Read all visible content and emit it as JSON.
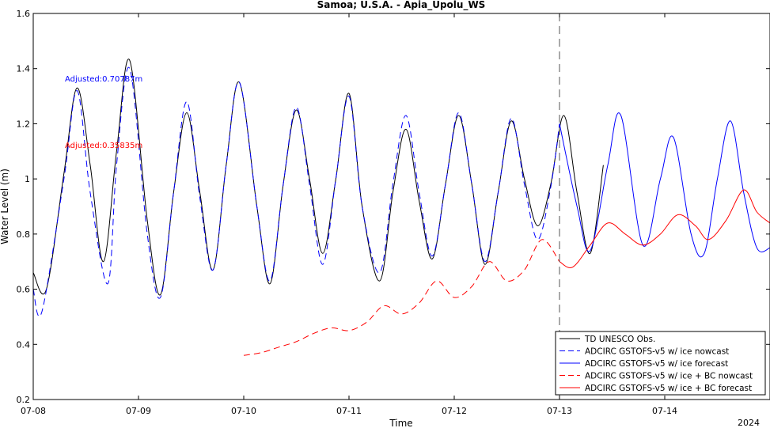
{
  "chart_data": {
    "type": "line",
    "title": "Samoa; U.S.A. - Apia_Upolu_WS",
    "xlabel": "Time",
    "ylabel": "Water Level (m)",
    "year_label": "2024",
    "xlim": [
      "2024-07-08T00:00",
      "2024-07-15T00:00"
    ],
    "ylim": [
      0.2,
      1.6
    ],
    "xticks": [
      "07-08",
      "07-09",
      "07-10",
      "07-11",
      "07-12",
      "07-13",
      "07-14"
    ],
    "yticks": [
      "0.2",
      "0.4",
      "0.6",
      "0.8",
      "1",
      "1.2",
      "1.4",
      "1.6"
    ],
    "grid": false,
    "legend_position": "bottom-right",
    "nowcast_forecast_divider": "2024-07-13T00:00",
    "annotations": [
      {
        "text": "Adjusted:0.70787m",
        "color": "#0000ff"
      },
      {
        "text": "Adjusted:0.35835m",
        "color": "#ff0000"
      }
    ],
    "series": [
      {
        "name": "TD UNESCO Obs.",
        "color": "#000000",
        "style": "solid",
        "x": [
          "2024-07-08T00:00",
          "2024-07-08T03:00",
          "2024-07-08T07:00",
          "2024-07-08T10:00",
          "2024-07-08T13:00",
          "2024-07-08T16:00",
          "2024-07-08T19:00",
          "2024-07-08T22:00",
          "2024-07-09T02:00",
          "2024-07-09T05:00",
          "2024-07-09T08:00",
          "2024-07-09T11:00",
          "2024-07-09T14:00",
          "2024-07-09T17:00",
          "2024-07-09T20:00",
          "2024-07-09T23:00",
          "2024-07-10T03:00",
          "2024-07-10T06:00",
          "2024-07-10T09:00",
          "2024-07-10T12:00",
          "2024-07-10T15:00",
          "2024-07-10T18:00",
          "2024-07-10T21:00",
          "2024-07-11T00:00",
          "2024-07-11T03:00",
          "2024-07-11T07:00",
          "2024-07-11T10:00",
          "2024-07-11T13:00",
          "2024-07-11T16:00",
          "2024-07-11T19:00",
          "2024-07-11T22:00",
          "2024-07-12T01:00",
          "2024-07-12T04:00",
          "2024-07-12T07:00",
          "2024-07-12T10:00",
          "2024-07-12T13:00",
          "2024-07-12T16:00",
          "2024-07-12T19:00",
          "2024-07-12T22:00",
          "2024-07-13T01:00",
          "2024-07-13T04:00",
          "2024-07-13T07:00",
          "2024-07-13T10:00"
        ],
        "y": [
          0.66,
          0.6,
          1.02,
          1.33,
          1.05,
          0.7,
          1.1,
          1.43,
          0.85,
          0.58,
          0.95,
          1.24,
          0.95,
          0.67,
          1.05,
          1.35,
          0.9,
          0.62,
          0.98,
          1.25,
          1.0,
          0.73,
          1.0,
          1.31,
          0.9,
          0.63,
          0.95,
          1.18,
          0.92,
          0.71,
          0.98,
          1.23,
          0.98,
          0.69,
          0.95,
          1.21,
          1.0,
          0.83,
          0.98,
          1.23,
          0.95,
          0.73,
          1.05
        ]
      },
      {
        "name": "ADCIRC GSTOFS-v5 w/ ice nowcast",
        "color": "#0000ff",
        "style": "dashed",
        "x": [
          "2024-07-08T00:00",
          "2024-07-08T02:00",
          "2024-07-08T07:00",
          "2024-07-08T10:00",
          "2024-07-08T13:00",
          "2024-07-08T17:00",
          "2024-07-08T19:00",
          "2024-07-08T22:00",
          "2024-07-09T02:00",
          "2024-07-09T05:00",
          "2024-07-09T08:00",
          "2024-07-09T11:00",
          "2024-07-09T14:00",
          "2024-07-09T17:00",
          "2024-07-09T20:00",
          "2024-07-09T23:00",
          "2024-07-10T03:00",
          "2024-07-10T06:00",
          "2024-07-10T09:00",
          "2024-07-10T12:00",
          "2024-07-10T15:00",
          "2024-07-10T18:00",
          "2024-07-10T21:00",
          "2024-07-11T00:00",
          "2024-07-11T03:00",
          "2024-07-11T07:00",
          "2024-07-11T10:00",
          "2024-07-11T13:00",
          "2024-07-11T16:00",
          "2024-07-11T19:00",
          "2024-07-11T22:00",
          "2024-07-12T01:00",
          "2024-07-12T04:00",
          "2024-07-12T07:00",
          "2024-07-12T10:00",
          "2024-07-12T13:00",
          "2024-07-12T16:00",
          "2024-07-12T19:00",
          "2024-07-12T22:00",
          "2024-07-13T00:00"
        ],
        "y": [
          0.6,
          0.52,
          1.0,
          1.32,
          0.95,
          0.62,
          1.05,
          1.4,
          0.8,
          0.57,
          0.95,
          1.28,
          0.93,
          0.67,
          1.05,
          1.35,
          0.9,
          0.63,
          0.98,
          1.26,
          0.98,
          0.69,
          1.0,
          1.3,
          0.9,
          0.66,
          0.98,
          1.23,
          0.95,
          0.72,
          0.98,
          1.24,
          0.98,
          0.7,
          0.95,
          1.22,
          0.98,
          0.78,
          0.97,
          1.2
        ]
      },
      {
        "name": "ADCIRC GSTOFS-v5 w/ ice forecast",
        "color": "#0000ff",
        "style": "solid",
        "x": [
          "2024-07-13T00:00",
          "2024-07-13T04:00",
          "2024-07-13T07:00",
          "2024-07-13T11:00",
          "2024-07-13T14:00",
          "2024-07-13T19:00",
          "2024-07-13T23:00",
          "2024-07-14T02:00",
          "2024-07-14T06:00",
          "2024-07-14T09:00",
          "2024-07-14T12:00",
          "2024-07-14T15:00",
          "2024-07-14T18:00",
          "2024-07-14T21:00",
          "2024-07-15T00:00"
        ],
        "y": [
          1.2,
          0.9,
          0.74,
          1.05,
          1.23,
          0.76,
          1.0,
          1.15,
          0.8,
          0.73,
          1.0,
          1.21,
          0.95,
          0.75,
          0.75
        ]
      },
      {
        "name": "ADCIRC GSTOFS-v5 w/ ice + BC nowcast",
        "color": "#ff0000",
        "style": "dashed",
        "x": [
          "2024-07-10T00:00",
          "2024-07-10T04:00",
          "2024-07-10T08:00",
          "2024-07-10T12:00",
          "2024-07-10T16:00",
          "2024-07-10T20:00",
          "2024-07-11T00:00",
          "2024-07-11T04:00",
          "2024-07-11T08:00",
          "2024-07-11T12:00",
          "2024-07-11T16:00",
          "2024-07-11T20:00",
          "2024-07-12T00:00",
          "2024-07-12T04:00",
          "2024-07-12T08:00",
          "2024-07-12T12:00",
          "2024-07-12T16:00",
          "2024-07-12T20:00",
          "2024-07-13T00:00"
        ],
        "y": [
          0.36,
          0.37,
          0.39,
          0.41,
          0.44,
          0.46,
          0.45,
          0.48,
          0.54,
          0.51,
          0.55,
          0.63,
          0.57,
          0.61,
          0.7,
          0.63,
          0.67,
          0.78,
          0.7
        ]
      },
      {
        "name": "ADCIRC GSTOFS-v5 w/ ice + BC forecast",
        "color": "#ff0000",
        "style": "solid",
        "x": [
          "2024-07-13T00:00",
          "2024-07-13T03:00",
          "2024-07-13T07:00",
          "2024-07-13T11:00",
          "2024-07-13T15:00",
          "2024-07-13T19:00",
          "2024-07-13T23:00",
          "2024-07-14T03:00",
          "2024-07-14T07:00",
          "2024-07-14T10:00",
          "2024-07-14T14:00",
          "2024-07-14T18:00",
          "2024-07-14T21:00",
          "2024-07-15T00:00"
        ],
        "y": [
          0.7,
          0.68,
          0.76,
          0.84,
          0.8,
          0.76,
          0.8,
          0.87,
          0.83,
          0.78,
          0.85,
          0.96,
          0.88,
          0.84
        ]
      }
    ]
  }
}
